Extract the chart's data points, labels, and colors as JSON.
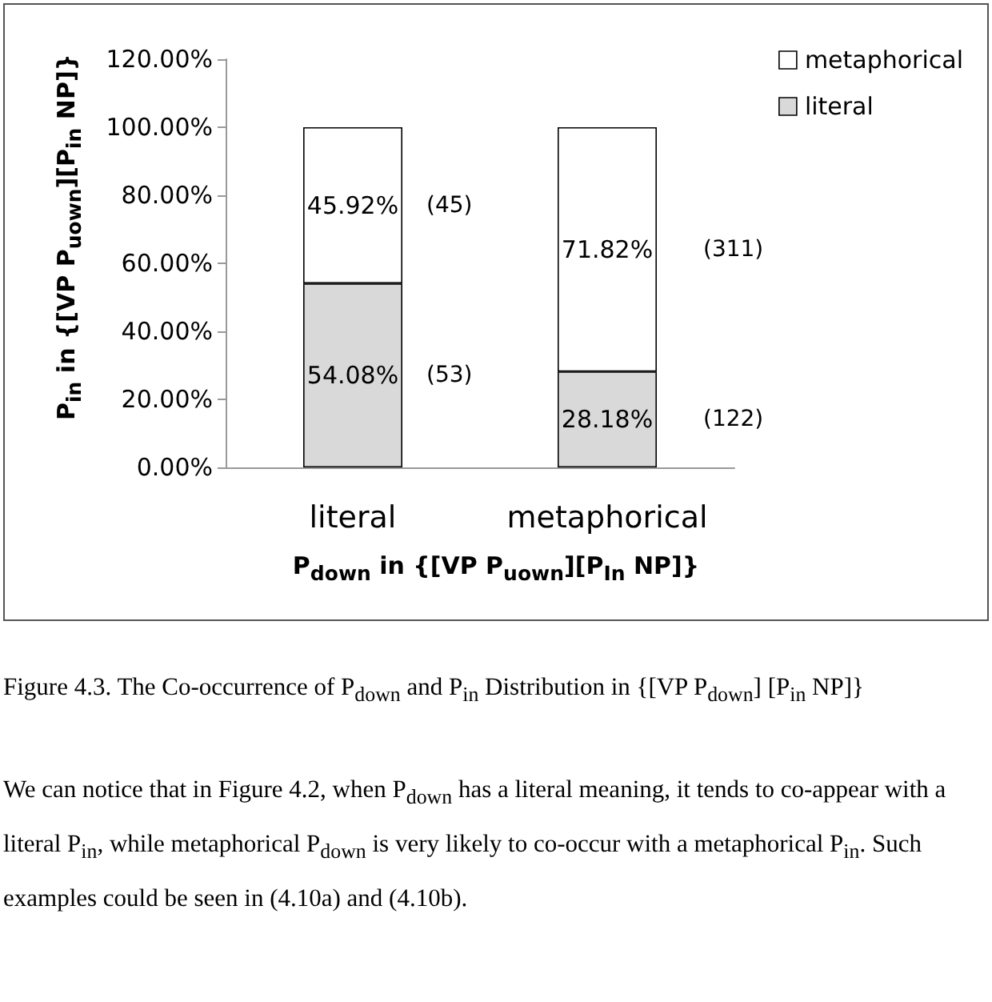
{
  "chart_data": {
    "type": "bar",
    "stacked": true,
    "categories": [
      "literal",
      "metaphorical"
    ],
    "series": [
      {
        "name": "literal",
        "color": "#d9d9d9",
        "values": [
          54.08,
          28.18
        ],
        "value_labels": [
          "54.08%",
          "28.18%"
        ]
      },
      {
        "name": "metaphorical",
        "color": "#ffffff",
        "values": [
          45.92,
          71.82
        ],
        "value_labels": [
          "45.92%",
          "71.82%"
        ]
      }
    ],
    "ylim": [
      0,
      120
    ],
    "yticks": [
      {
        "value": 0,
        "label": "0.00%"
      },
      {
        "value": 20,
        "label": "20.00%"
      },
      {
        "value": 40,
        "label": "40.00%"
      },
      {
        "value": 60,
        "label": "60.00%"
      },
      {
        "value": 80,
        "label": "80.00%"
      },
      {
        "value": 100,
        "label": "100.00%"
      },
      {
        "value": 120,
        "label": "120.00%"
      }
    ],
    "ylabel": "P$_{in}$ in {[VP P$_{uown}$][P$_{in}$ NP]}",
    "xlabel": "P$_{down}$ in {[VP P$_{uown}$][P$_{In}$ NP]}",
    "legend": "top right",
    "grid": false,
    "annotations": [
      "(53)",
      "(122)",
      "(45)",
      "(311)",
      "Figure 4.3. The Co-occurrence of P$_{down}$ and P$_{in}$ Distribution in {[VP P$_{down}$] [P$_{in}$ NP]}",
      "We can notice that in Figure 4.2, when P$_{down}$ has a literal meaning, it tends to co-appear with a literal P$_{in}$, while metaphorical P$_{down}$ is very likely to co-occur with a metaphorical P$_{in}$. Such examples could be seen in (4.10a) and (4.10b)."
    ]
  }
}
